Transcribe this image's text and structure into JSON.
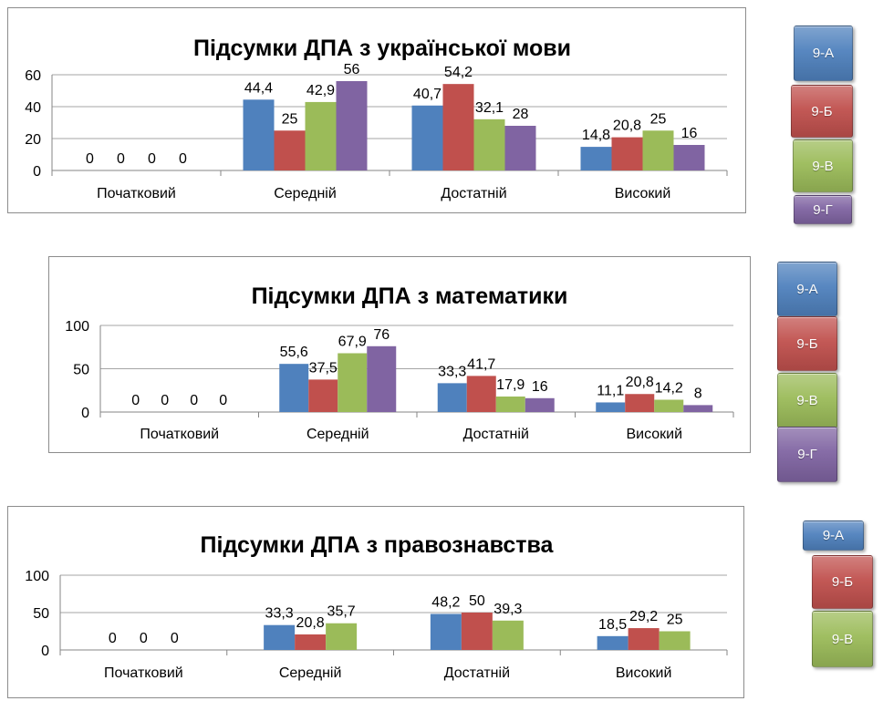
{
  "colors": {
    "9-А": "#4f81bd",
    "9-Б": "#c0504d",
    "9-В": "#9bbb59",
    "9-Г": "#8064a2"
  },
  "chart_data": [
    {
      "type": "bar",
      "title": "Підсумки ДПА з української мови",
      "categories": [
        "Початковий",
        "Середній",
        "Достатній",
        "Високий"
      ],
      "series": [
        {
          "name": "9-А",
          "values": [
            0,
            44.4,
            40.7,
            14.8
          ],
          "labels": [
            "0",
            "44,4",
            "40,7",
            "14,8"
          ]
        },
        {
          "name": "9-Б",
          "values": [
            0,
            25,
            54.2,
            20.8
          ],
          "labels": [
            "0",
            "25",
            "54,2",
            "20,8"
          ]
        },
        {
          "name": "9-В",
          "values": [
            0,
            42.9,
            32.1,
            25
          ],
          "labels": [
            "0",
            "42,9",
            "32,1",
            "25"
          ]
        },
        {
          "name": "9-Г",
          "values": [
            0,
            56,
            28,
            16
          ],
          "labels": [
            "0",
            "56",
            "28",
            "16"
          ]
        }
      ],
      "ylim": [
        0,
        60
      ],
      "yticks": [
        0,
        20,
        40,
        60
      ],
      "grid": true,
      "legend": "right"
    },
    {
      "type": "bar",
      "title": "Підсумки ДПА з математики",
      "categories": [
        "Початковий",
        "Середній",
        "Достатній",
        "Високий"
      ],
      "series": [
        {
          "name": "9-А",
          "values": [
            0,
            55.6,
            33.3,
            11.1
          ],
          "labels": [
            "0",
            "55,6",
            "33,3",
            "11,1"
          ]
        },
        {
          "name": "9-Б",
          "values": [
            0,
            37.5,
            41.7,
            20.8
          ],
          "labels": [
            "0",
            "37,5",
            "41,7",
            "20,8"
          ]
        },
        {
          "name": "9-В",
          "values": [
            0,
            67.9,
            17.9,
            14.2
          ],
          "labels": [
            "0",
            "67,9",
            "17,9",
            "14,2"
          ]
        },
        {
          "name": "9-Г",
          "values": [
            0,
            76,
            16,
            8
          ],
          "labels": [
            "0",
            "76",
            "16",
            "8"
          ]
        }
      ],
      "ylim": [
        0,
        100
      ],
      "yticks": [
        0,
        50,
        100
      ],
      "grid": true,
      "legend": "right"
    },
    {
      "type": "bar",
      "title": "Підсумки ДПА з правознавства",
      "categories": [
        "Початковий",
        "Середній",
        "Достатній",
        "Високий"
      ],
      "series": [
        {
          "name": "9-А",
          "values": [
            0,
            33.3,
            48.2,
            18.5
          ],
          "labels": [
            "0",
            "33,3",
            "48,2",
            "18,5"
          ]
        },
        {
          "name": "9-Б",
          "values": [
            0,
            20.8,
            50,
            29.2
          ],
          "labels": [
            "0",
            "20,8",
            "50",
            "29,2"
          ]
        },
        {
          "name": "9-В",
          "values": [
            0,
            35.7,
            39.3,
            25
          ],
          "labels": [
            "0",
            "35,7",
            "39,3",
            "25"
          ]
        }
      ],
      "ylim": [
        0,
        100
      ],
      "yticks": [
        0,
        50,
        100
      ],
      "grid": true,
      "legend": "right"
    }
  ]
}
